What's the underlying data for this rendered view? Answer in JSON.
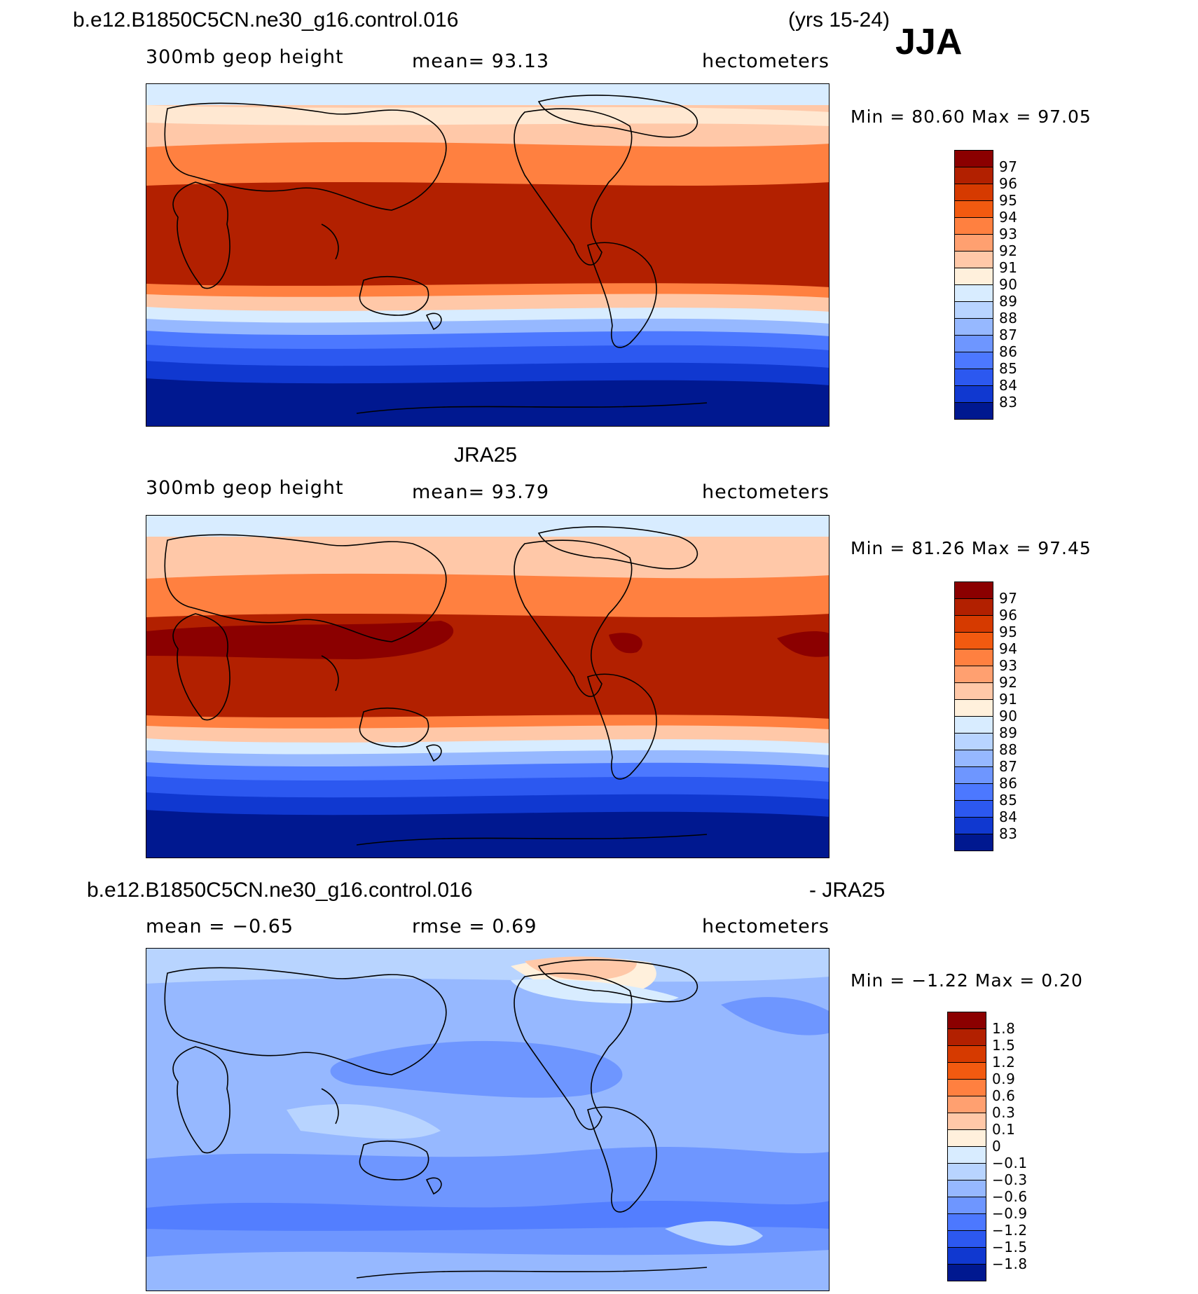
{
  "case_title": "b.e12.B1850C5CN.ne30_g16.control.016",
  "years": "(yrs 15-24)",
  "season": "JJA",
  "panels": [
    {
      "variable": "300mb geop height",
      "mean_text": "mean=   93.13",
      "units": "hectometers",
      "minmax_text": "Min =   80.60 Max =   97.05"
    },
    {
      "title": "JRA25",
      "variable": "300mb geop height",
      "mean_text": "mean=   93.79",
      "units": "hectometers",
      "minmax_text": "Min =   81.26 Max =   97.45"
    },
    {
      "title_left": "b.e12.B1850C5CN.ne30_g16.control.016",
      "title_right": "- JRA25",
      "mean_text": "mean =   −0.65",
      "rmse_text": "rmse =    0.69",
      "units": "hectometers",
      "minmax_text": "Min =   −1.22 Max =    0.20"
    }
  ],
  "colorbars": {
    "height_labels": [
      "97",
      "96",
      "95",
      "94",
      "93",
      "92",
      "91",
      "90",
      "89",
      "88",
      "87",
      "86",
      "85",
      "84",
      "83"
    ],
    "diff_labels": [
      "1.8",
      "1.5",
      "1.2",
      "0.9",
      "0.6",
      "0.3",
      "0.1",
      "0",
      "−0.1",
      "−0.3",
      "−0.6",
      "−0.9",
      "−1.2",
      "−1.5",
      "−1.8"
    ],
    "colors": [
      "#8b0000",
      "#b22000",
      "#d63a00",
      "#f25a10",
      "#ff8040",
      "#ffa070",
      "#ffc8a8",
      "#fff0dc",
      "#d8ecff",
      "#b8d4ff",
      "#96b8ff",
      "#6e96ff",
      "#4c78ff",
      "#2c58f0",
      "#1038d0",
      "#001890"
    ]
  }
}
